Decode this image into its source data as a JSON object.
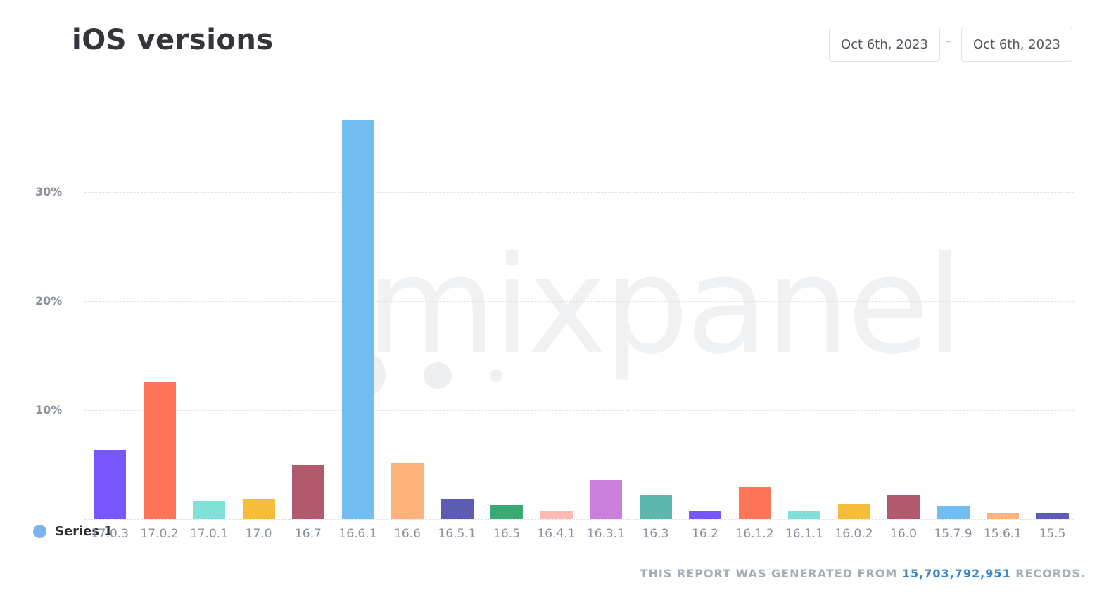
{
  "header": {
    "title": "iOS versions",
    "date_from": "Oct 6th, 2023",
    "date_separator": "–",
    "date_to": "Oct 6th, 2023"
  },
  "watermark": "mixpanel",
  "legend": {
    "label": "Series 1",
    "color": "#7cb4ec"
  },
  "footer": {
    "prefix": "THIS REPORT WAS GENERATED FROM",
    "count": "15,703,792,951",
    "suffix": "RECORDS."
  },
  "yticks": [
    "30%",
    "20%",
    "10%"
  ],
  "chart_data": {
    "type": "bar",
    "title": "iOS versions",
    "xlabel": "",
    "ylabel": "",
    "ylim": [
      0,
      37
    ],
    "grid": true,
    "legend_position": "bottom-left",
    "y_ticks": [
      "10%",
      "20%",
      "30%"
    ],
    "categories": [
      "17.0.3",
      "17.0.2",
      "17.0.1",
      "17.0",
      "16.7",
      "16.6.1",
      "16.6",
      "16.5.1",
      "16.5",
      "16.4.1",
      "16.3.1",
      "16.3",
      "16.2",
      "16.1.2",
      "16.1.1",
      "16.0.2",
      "16.0",
      "15.7.9",
      "15.6.1",
      "15.5"
    ],
    "series": [
      {
        "name": "Series 1",
        "values": [
          6.3,
          12.6,
          1.7,
          1.9,
          5.0,
          36.6,
          5.1,
          1.9,
          1.3,
          0.7,
          3.6,
          2.2,
          0.8,
          3.0,
          0.7,
          1.4,
          2.2,
          1.2,
          0.6,
          0.6
        ],
        "colors": [
          "#7856ff",
          "#ff7557",
          "#80e1d9",
          "#f8bc3b",
          "#b2596e",
          "#72bef4",
          "#ffb27a",
          "#5c5cb5",
          "#3ba974",
          "#febbb2",
          "#cb80dc",
          "#5cb7af",
          "#7856ff",
          "#ff7557",
          "#80e1d9",
          "#f8bc3b",
          "#b2596e",
          "#72bef4",
          "#ffb27a",
          "#5c5cb5"
        ]
      }
    ]
  }
}
